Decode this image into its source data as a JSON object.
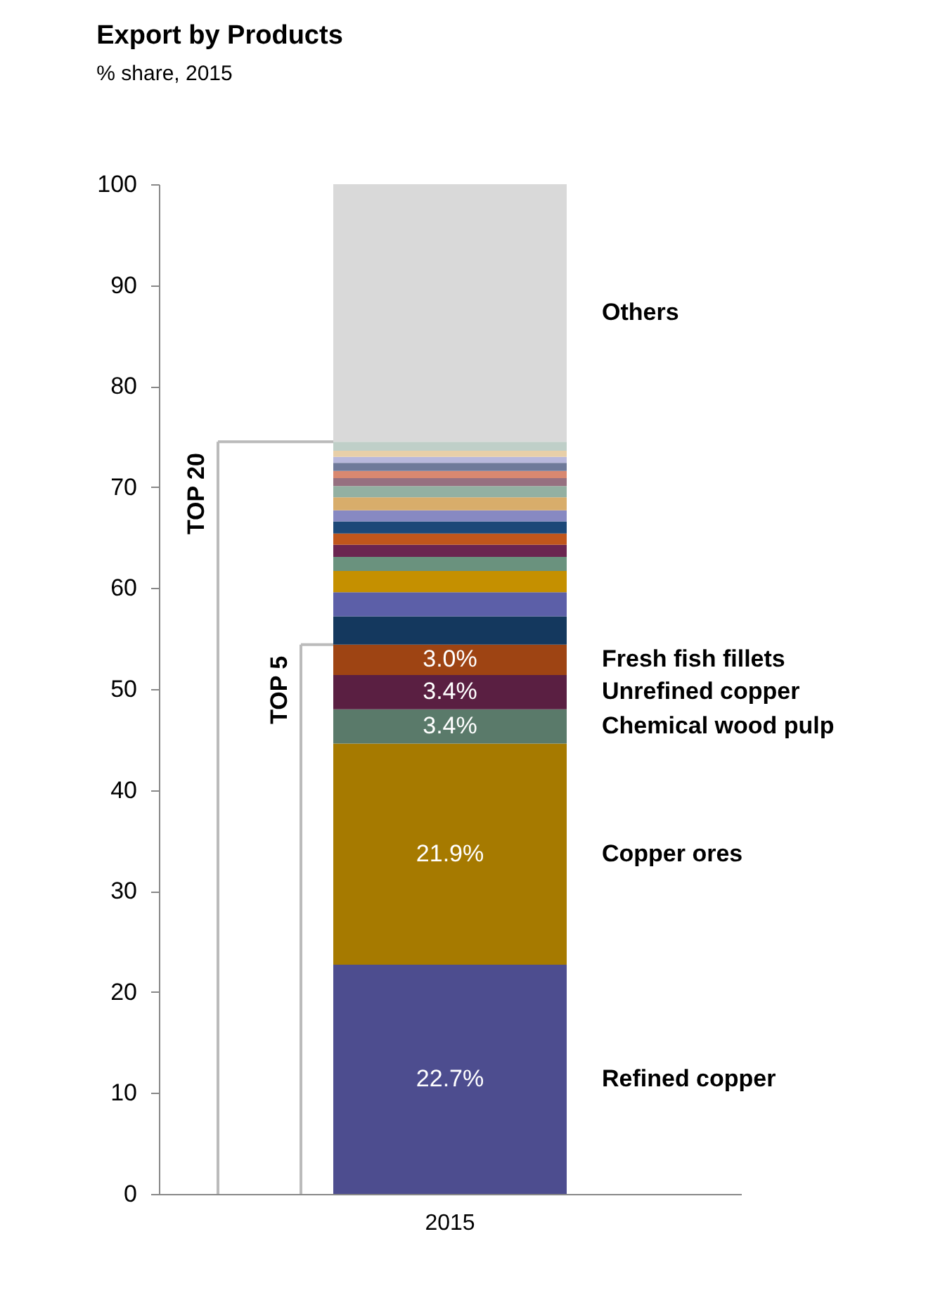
{
  "chart_data": {
    "type": "bar",
    "stacked": true,
    "title": "Export by Products",
    "subtitle": "% share, 2015",
    "categories": [
      "2015"
    ],
    "ylim": [
      0,
      100
    ],
    "yticks": [
      0,
      10,
      20,
      30,
      40,
      50,
      60,
      70,
      80,
      90,
      100
    ],
    "grid": false,
    "series": [
      {
        "name": "Refined copper",
        "color": "#4d4d8f",
        "values": [
          22.7
        ],
        "value_labels": [
          "22.7%"
        ]
      },
      {
        "name": "Copper ores",
        "color": "#a67a00",
        "values": [
          21.9
        ],
        "value_labels": [
          "21.9%"
        ]
      },
      {
        "name": "Chemical wood pulp",
        "color": "#5a7a6a",
        "values": [
          3.4
        ],
        "value_labels": [
          "3.4%"
        ]
      },
      {
        "name": "Unrefined copper",
        "color": "#5a1f42",
        "values": [
          3.4
        ],
        "value_labels": [
          "3.4%"
        ]
      },
      {
        "name": "Fresh fish fillets",
        "color": "#9e4413",
        "values": [
          3.0
        ],
        "value_labels": [
          "3.0%"
        ]
      },
      {
        "color": "#14385e",
        "values": [
          2.8
        ]
      },
      {
        "color": "#5c5fa8",
        "values": [
          2.4
        ]
      },
      {
        "color": "#c59000",
        "values": [
          2.1
        ]
      },
      {
        "color": "#6a927e",
        "values": [
          1.4
        ]
      },
      {
        "color": "#6b2550",
        "values": [
          1.2
        ]
      },
      {
        "color": "#c0561c",
        "values": [
          1.1
        ]
      },
      {
        "color": "#1c4878",
        "values": [
          1.2
        ]
      },
      {
        "color": "#8789c2",
        "values": [
          1.1
        ]
      },
      {
        "color": "#d8ad6b",
        "values": [
          1.3
        ]
      },
      {
        "color": "#93b0a2",
        "values": [
          1.1
        ]
      },
      {
        "color": "#967080",
        "values": [
          0.8
        ]
      },
      {
        "color": "#d98870",
        "values": [
          0.7
        ]
      },
      {
        "color": "#6f7a9a",
        "values": [
          0.8
        ]
      },
      {
        "color": "#b8b8dc",
        "values": [
          0.6
        ]
      },
      {
        "color": "#e8cfa8",
        "values": [
          0.6
        ]
      },
      {
        "color": "#bfcfc8",
        "values": [
          0.9
        ]
      },
      {
        "name": "Others",
        "color": "#d9d9d9",
        "values": [
          25.5
        ]
      }
    ],
    "annotations": [
      "TOP 20",
      "TOP 5"
    ]
  }
}
